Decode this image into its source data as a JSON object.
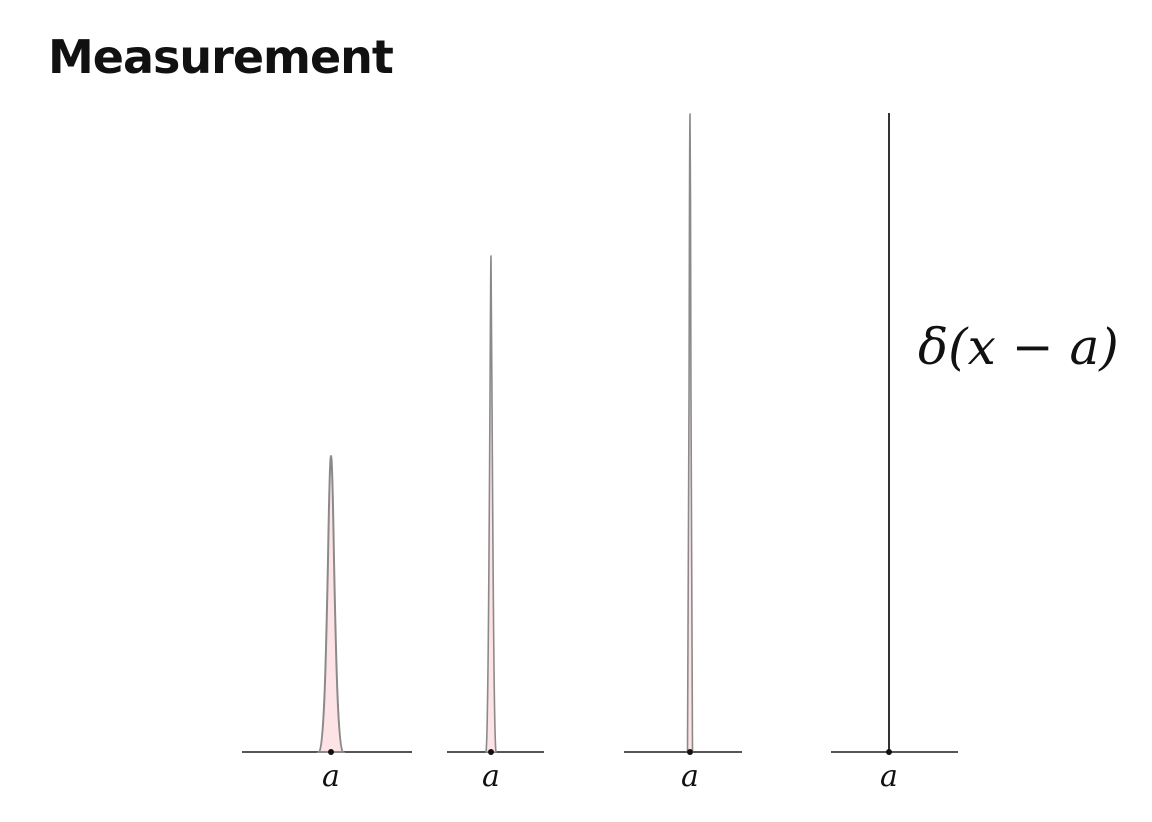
{
  "title": "Measurement",
  "point_label": "a",
  "delta_label": "δ(x − a)",
  "colors": {
    "fill": "#fde3e6",
    "curve": "#8a8a8a",
    "axis": "#555555",
    "spike": "#333333",
    "text": "#111111"
  },
  "icons": [
    "gaussian-peak",
    "narrow-peak",
    "very-narrow-peak",
    "dirac-delta-spike"
  ]
}
